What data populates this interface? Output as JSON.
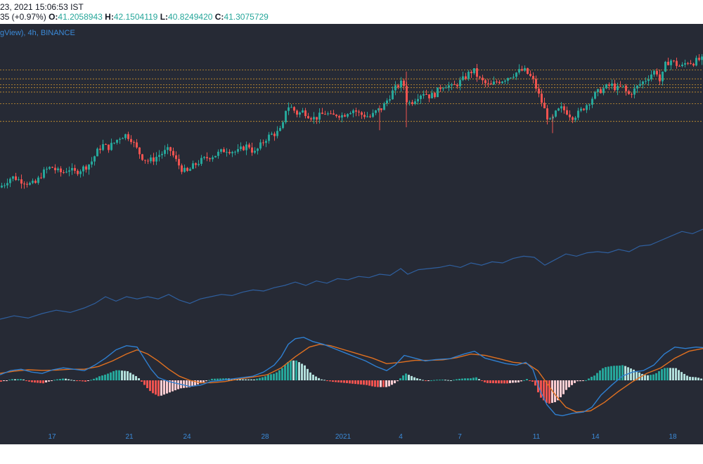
{
  "header": {
    "datetime": "23, 2021 15:06:53 IST",
    "change_prefix": "35 (+0.97%)",
    "o_label": "O:",
    "o_value": "41.2058943",
    "h_label": "H:",
    "h_value": "42.1504119",
    "l_label": "L:",
    "l_value": "40.8249420",
    "c_label": "C:",
    "c_value": "41.3075729"
  },
  "legend": {
    "text": "gView), 4h, BINANCE"
  },
  "colors": {
    "background": "#262a35",
    "up": "#26a69a",
    "down": "#ef5350",
    "level_line": "#e0a030",
    "indicator_line": "#2f5f9e",
    "macd_line": "#2f7fd0",
    "signal_line": "#e07020",
    "hist_up_strong": "#26a69a",
    "hist_up_weak": "#b2dfdb",
    "hist_down_strong": "#ef5350",
    "hist_down_weak": "#ffcdd2",
    "axis_label": "#3b8ad8"
  },
  "chart_data": {
    "type": "candlestick",
    "title": "",
    "x_ticks": [
      "17",
      "21",
      "24",
      "28",
      "2021",
      "4",
      "7",
      "11",
      "14",
      "18"
    ],
    "price_close_path": [
      [
        0,
        34.6
      ],
      [
        8,
        34.8
      ],
      [
        15,
        35.2
      ],
      [
        22,
        35.3
      ],
      [
        30,
        35.1
      ],
      [
        38,
        35.0
      ],
      [
        46,
        34.8
      ],
      [
        54,
        34.9
      ],
      [
        60,
        35.4
      ],
      [
        68,
        35.8
      ],
      [
        76,
        36.0
      ],
      [
        84,
        35.7
      ],
      [
        92,
        35.6
      ],
      [
        100,
        35.9
      ],
      [
        108,
        35.6
      ],
      [
        116,
        35.8
      ],
      [
        124,
        36.0
      ],
      [
        132,
        36.3
      ],
      [
        140,
        37.0
      ],
      [
        148,
        37.5
      ],
      [
        156,
        37.3
      ],
      [
        164,
        37.6
      ],
      [
        172,
        38.0
      ],
      [
        180,
        38.2
      ],
      [
        188,
        38.0
      ],
      [
        196,
        37.3
      ],
      [
        204,
        36.7
      ],
      [
        212,
        36.4
      ],
      [
        220,
        36.5
      ],
      [
        228,
        36.8
      ],
      [
        236,
        37.0
      ],
      [
        244,
        37.2
      ],
      [
        252,
        36.5
      ],
      [
        260,
        35.9
      ],
      [
        268,
        35.6
      ],
      [
        276,
        36.0
      ],
      [
        284,
        36.3
      ],
      [
        292,
        36.5
      ],
      [
        300,
        36.7
      ],
      [
        308,
        36.8
      ],
      [
        316,
        37.0
      ],
      [
        324,
        37.2
      ],
      [
        332,
        37.1
      ],
      [
        340,
        37.0
      ],
      [
        348,
        37.3
      ],
      [
        356,
        37.5
      ],
      [
        364,
        36.9
      ],
      [
        372,
        37.4
      ],
      [
        380,
        37.9
      ],
      [
        388,
        38.2
      ],
      [
        396,
        38.3
      ],
      [
        404,
        38.6
      ],
      [
        410,
        40.2
      ],
      [
        418,
        40.0
      ],
      [
        426,
        39.6
      ],
      [
        434,
        39.8
      ],
      [
        442,
        39.5
      ],
      [
        450,
        39.3
      ],
      [
        458,
        39.5
      ],
      [
        466,
        39.7
      ],
      [
        474,
        39.4
      ],
      [
        482,
        39.6
      ],
      [
        490,
        39.5
      ],
      [
        498,
        39.8
      ],
      [
        506,
        39.9
      ],
      [
        514,
        39.6
      ],
      [
        522,
        39.5
      ],
      [
        530,
        39.4
      ],
      [
        538,
        39.8
      ],
      [
        546,
        40.0
      ],
      [
        554,
        40.6
      ],
      [
        562,
        41.2
      ],
      [
        570,
        41.6
      ],
      [
        576,
        41.8
      ],
      [
        582,
        40.3
      ],
      [
        590,
        40.5
      ],
      [
        598,
        40.9
      ],
      [
        606,
        41.1
      ],
      [
        614,
        40.8
      ],
      [
        622,
        41.0
      ],
      [
        630,
        41.5
      ],
      [
        638,
        41.6
      ],
      [
        646,
        41.4
      ],
      [
        654,
        41.7
      ],
      [
        662,
        42.0
      ],
      [
        670,
        42.4
      ],
      [
        676,
        42.6
      ],
      [
        684,
        42.0
      ],
      [
        692,
        41.7
      ],
      [
        700,
        41.5
      ],
      [
        708,
        41.8
      ],
      [
        716,
        41.9
      ],
      [
        724,
        42.1
      ],
      [
        732,
        42.3
      ],
      [
        740,
        42.5
      ],
      [
        748,
        42.6
      ],
      [
        756,
        42.2
      ],
      [
        762,
        41.8
      ],
      [
        768,
        41.0
      ],
      [
        774,
        40.3
      ],
      [
        780,
        39.5
      ],
      [
        786,
        39.0
      ],
      [
        792,
        39.6
      ],
      [
        800,
        40.0
      ],
      [
        808,
        39.8
      ],
      [
        816,
        39.4
      ],
      [
        824,
        39.6
      ],
      [
        832,
        40.0
      ],
      [
        840,
        40.4
      ],
      [
        848,
        40.9
      ],
      [
        856,
        41.2
      ],
      [
        864,
        41.4
      ],
      [
        872,
        41.6
      ],
      [
        880,
        41.3
      ],
      [
        888,
        41.5
      ],
      [
        896,
        40.9
      ],
      [
        904,
        41.2
      ],
      [
        912,
        41.6
      ],
      [
        920,
        41.9
      ],
      [
        928,
        42.3
      ],
      [
        936,
        42.6
      ],
      [
        942,
        41.7
      ],
      [
        948,
        42.9
      ],
      [
        956,
        43.3
      ],
      [
        964,
        43.0
      ],
      [
        972,
        42.8
      ],
      [
        980,
        43.2
      ],
      [
        988,
        43.1
      ],
      [
        996,
        43.3
      ]
    ],
    "price_range": [
      33.0,
      44.5
    ],
    "level_lines": [
      42.6,
      42.0,
      41.6,
      41.4,
      41.1,
      40.3,
      39.1
    ],
    "indicator_line": [
      [
        0,
        0.1
      ],
      [
        20,
        0.13
      ],
      [
        40,
        0.11
      ],
      [
        60,
        0.15
      ],
      [
        80,
        0.18
      ],
      [
        100,
        0.16
      ],
      [
        120,
        0.2
      ],
      [
        135,
        0.24
      ],
      [
        150,
        0.3
      ],
      [
        165,
        0.26
      ],
      [
        180,
        0.3
      ],
      [
        195,
        0.28
      ],
      [
        210,
        0.3
      ],
      [
        225,
        0.28
      ],
      [
        240,
        0.32
      ],
      [
        255,
        0.27
      ],
      [
        270,
        0.24
      ],
      [
        285,
        0.28
      ],
      [
        300,
        0.3
      ],
      [
        315,
        0.32
      ],
      [
        330,
        0.31
      ],
      [
        345,
        0.34
      ],
      [
        360,
        0.36
      ],
      [
        375,
        0.35
      ],
      [
        390,
        0.38
      ],
      [
        405,
        0.4
      ],
      [
        420,
        0.43
      ],
      [
        435,
        0.4
      ],
      [
        450,
        0.44
      ],
      [
        465,
        0.42
      ],
      [
        480,
        0.46
      ],
      [
        495,
        0.45
      ],
      [
        510,
        0.48
      ],
      [
        525,
        0.47
      ],
      [
        540,
        0.5
      ],
      [
        555,
        0.49
      ],
      [
        570,
        0.55
      ],
      [
        580,
        0.5
      ],
      [
        595,
        0.54
      ],
      [
        610,
        0.55
      ],
      [
        625,
        0.56
      ],
      [
        640,
        0.58
      ],
      [
        655,
        0.56
      ],
      [
        670,
        0.6
      ],
      [
        685,
        0.58
      ],
      [
        700,
        0.61
      ],
      [
        715,
        0.6
      ],
      [
        730,
        0.64
      ],
      [
        745,
        0.66
      ],
      [
        760,
        0.65
      ],
      [
        775,
        0.58
      ],
      [
        790,
        0.63
      ],
      [
        805,
        0.68
      ],
      [
        820,
        0.66
      ],
      [
        835,
        0.69
      ],
      [
        850,
        0.7
      ],
      [
        865,
        0.69
      ],
      [
        880,
        0.72
      ],
      [
        895,
        0.7
      ],
      [
        910,
        0.75
      ],
      [
        925,
        0.76
      ],
      [
        940,
        0.8
      ],
      [
        955,
        0.84
      ],
      [
        970,
        0.88
      ],
      [
        985,
        0.86
      ],
      [
        1000,
        0.9
      ]
    ],
    "macd_line": [
      [
        0,
        0.2
      ],
      [
        15,
        0.35
      ],
      [
        30,
        0.4
      ],
      [
        45,
        0.3
      ],
      [
        60,
        0.25
      ],
      [
        75,
        0.38
      ],
      [
        90,
        0.45
      ],
      [
        105,
        0.4
      ],
      [
        120,
        0.35
      ],
      [
        135,
        0.55
      ],
      [
        150,
        0.8
      ],
      [
        165,
        1.1
      ],
      [
        180,
        1.25
      ],
      [
        195,
        1.2
      ],
      [
        205,
        0.8
      ],
      [
        215,
        0.4
      ],
      [
        225,
        0.1
      ],
      [
        240,
        -0.05
      ],
      [
        255,
        -0.15
      ],
      [
        270,
        -0.25
      ],
      [
        285,
        -0.2
      ],
      [
        300,
        -0.05
      ],
      [
        315,
        0.0
      ],
      [
        330,
        0.05
      ],
      [
        345,
        0.1
      ],
      [
        360,
        0.15
      ],
      [
        375,
        0.3
      ],
      [
        390,
        0.55
      ],
      [
        400,
        0.85
      ],
      [
        410,
        1.3
      ],
      [
        420,
        1.5
      ],
      [
        432,
        1.55
      ],
      [
        445,
        1.4
      ],
      [
        460,
        1.3
      ],
      [
        475,
        1.15
      ],
      [
        490,
        1.0
      ],
      [
        505,
        0.85
      ],
      [
        520,
        0.7
      ],
      [
        535,
        0.5
      ],
      [
        550,
        0.35
      ],
      [
        562,
        0.55
      ],
      [
        575,
        0.9
      ],
      [
        590,
        0.8
      ],
      [
        605,
        0.7
      ],
      [
        620,
        0.75
      ],
      [
        640,
        0.78
      ],
      [
        660,
        0.95
      ],
      [
        675,
        1.05
      ],
      [
        690,
        0.8
      ],
      [
        705,
        0.7
      ],
      [
        720,
        0.6
      ],
      [
        735,
        0.55
      ],
      [
        748,
        0.65
      ],
      [
        758,
        0.4
      ],
      [
        768,
        -0.4
      ],
      [
        778,
        -1.0
      ],
      [
        790,
        -1.4
      ],
      [
        800,
        -1.45
      ],
      [
        815,
        -1.35
      ],
      [
        830,
        -1.3
      ],
      [
        842,
        -1.1
      ],
      [
        855,
        -0.6
      ],
      [
        870,
        -0.2
      ],
      [
        885,
        0.15
      ],
      [
        900,
        0.3
      ],
      [
        915,
        0.35
      ],
      [
        930,
        0.55
      ],
      [
        945,
        0.95
      ],
      [
        960,
        1.2
      ],
      [
        975,
        1.15
      ],
      [
        990,
        1.2
      ],
      [
        1000,
        1.18
      ]
    ],
    "signal_line": [
      [
        0,
        0.25
      ],
      [
        20,
        0.33
      ],
      [
        40,
        0.38
      ],
      [
        60,
        0.36
      ],
      [
        80,
        0.37
      ],
      [
        100,
        0.4
      ],
      [
        120,
        0.4
      ],
      [
        140,
        0.5
      ],
      [
        160,
        0.7
      ],
      [
        180,
        0.95
      ],
      [
        195,
        1.1
      ],
      [
        210,
        0.95
      ],
      [
        225,
        0.7
      ],
      [
        240,
        0.4
      ],
      [
        255,
        0.15
      ],
      [
        270,
        0.0
      ],
      [
        285,
        -0.1
      ],
      [
        300,
        -0.1
      ],
      [
        320,
        -0.05
      ],
      [
        340,
        0.05
      ],
      [
        360,
        0.12
      ],
      [
        380,
        0.2
      ],
      [
        400,
        0.45
      ],
      [
        420,
        0.85
      ],
      [
        440,
        1.2
      ],
      [
        455,
        1.3
      ],
      [
        470,
        1.25
      ],
      [
        490,
        1.1
      ],
      [
        510,
        0.95
      ],
      [
        530,
        0.8
      ],
      [
        550,
        0.6
      ],
      [
        570,
        0.65
      ],
      [
        590,
        0.72
      ],
      [
        610,
        0.72
      ],
      [
        630,
        0.74
      ],
      [
        650,
        0.82
      ],
      [
        670,
        0.95
      ],
      [
        690,
        0.9
      ],
      [
        710,
        0.78
      ],
      [
        730,
        0.65
      ],
      [
        750,
        0.6
      ],
      [
        765,
        0.35
      ],
      [
        775,
        0.0
      ],
      [
        790,
        -0.6
      ],
      [
        805,
        -1.1
      ],
      [
        820,
        -1.3
      ],
      [
        840,
        -1.25
      ],
      [
        860,
        -0.9
      ],
      [
        880,
        -0.45
      ],
      [
        900,
        -0.05
      ],
      [
        920,
        0.25
      ],
      [
        940,
        0.45
      ],
      [
        960,
        0.8
      ],
      [
        980,
        1.05
      ],
      [
        1000,
        1.15
      ]
    ],
    "macd_range": [
      -1.7,
      1.8
    ]
  }
}
